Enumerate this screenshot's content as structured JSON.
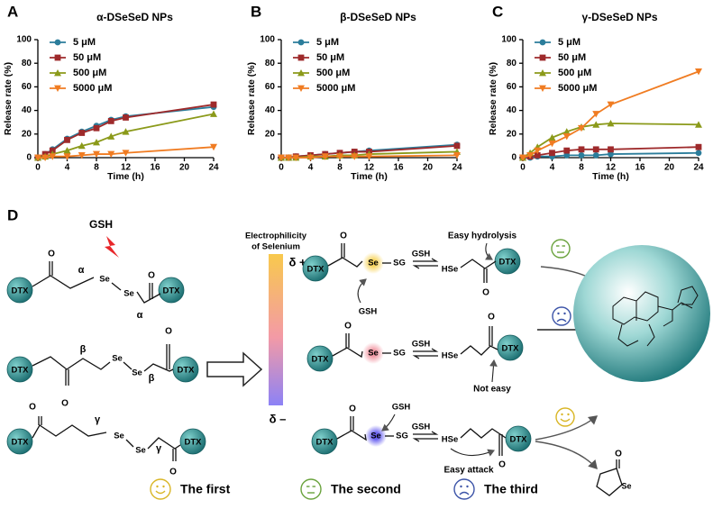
{
  "chart_data": [
    {
      "type": "line",
      "label": "A",
      "title": "α-DSeSeD NPs",
      "x_label": "Time (h)",
      "y_label": "Release rate (%)",
      "x": [
        0,
        1,
        2,
        4,
        6,
        8,
        10,
        12,
        24
      ],
      "xlim": [
        0,
        24
      ],
      "xticks": [
        0,
        4,
        8,
        12,
        16,
        20,
        24
      ],
      "ylim": [
        0,
        100
      ],
      "yticks": [
        0,
        20,
        40,
        60,
        80,
        100
      ],
      "series": [
        {
          "name": "5 μM",
          "color": "#2b7d9b",
          "marker": "circle",
          "values": [
            0,
            3,
            7,
            16,
            22,
            27,
            32,
            35,
            43
          ]
        },
        {
          "name": "50 μM",
          "color": "#9e2a2b",
          "marker": "square",
          "values": [
            0,
            3,
            6,
            15,
            21,
            25,
            31,
            34,
            45
          ]
        },
        {
          "name": "500 μM",
          "color": "#8b9a1a",
          "marker": "triangle-up",
          "values": [
            0,
            1,
            3,
            6,
            10,
            13,
            18,
            22,
            37
          ]
        },
        {
          "name": "5000 μM",
          "color": "#f07c22",
          "marker": "triangle-down",
          "values": [
            0,
            0,
            1,
            1,
            2,
            3,
            3,
            4,
            9
          ]
        }
      ]
    },
    {
      "type": "line",
      "label": "B",
      "title": "β-DSeSeD NPs",
      "x_label": "Time (h)",
      "y_label": "Release rate (%)",
      "x": [
        0,
        1,
        2,
        4,
        6,
        8,
        10,
        12,
        24
      ],
      "xlim": [
        0,
        24
      ],
      "xticks": [
        0,
        4,
        8,
        12,
        16,
        20,
        24
      ],
      "ylim": [
        0,
        100
      ],
      "yticks": [
        0,
        20,
        40,
        60,
        80,
        100
      ],
      "series": [
        {
          "name": "5 μM",
          "color": "#2b7d9b",
          "marker": "circle",
          "values": [
            0,
            0,
            1,
            2,
            3,
            4,
            5,
            6,
            11
          ]
        },
        {
          "name": "50 μM",
          "color": "#9e2a2b",
          "marker": "square",
          "values": [
            0,
            0,
            1,
            2,
            3,
            4,
            5,
            5,
            10
          ]
        },
        {
          "name": "500 μM",
          "color": "#8b9a1a",
          "marker": "triangle-up",
          "values": [
            0,
            0,
            0,
            1,
            1,
            2,
            2,
            3,
            5
          ]
        },
        {
          "name": "5000 μM",
          "color": "#f07c22",
          "marker": "triangle-down",
          "values": [
            0,
            0,
            0,
            0,
            1,
            1,
            1,
            1,
            2
          ]
        }
      ]
    },
    {
      "type": "line",
      "label": "C",
      "title": "γ-DSeSeD NPs",
      "x_label": "Time (h)",
      "y_label": "Release rate (%)",
      "x": [
        0,
        1,
        2,
        4,
        6,
        8,
        10,
        12,
        24
      ],
      "xlim": [
        0,
        24
      ],
      "xticks": [
        0,
        4,
        8,
        12,
        16,
        20,
        24
      ],
      "ylim": [
        0,
        100
      ],
      "yticks": [
        0,
        20,
        40,
        60,
        80,
        100
      ],
      "series": [
        {
          "name": "5 μM",
          "color": "#2b7d9b",
          "marker": "circle",
          "values": [
            0,
            0,
            1,
            1,
            2,
            2,
            2,
            3,
            4
          ]
        },
        {
          "name": "50 μM",
          "color": "#9e2a2b",
          "marker": "square",
          "values": [
            0,
            1,
            2,
            4,
            6,
            7,
            7,
            7,
            9
          ]
        },
        {
          "name": "500 μM",
          "color": "#8b9a1a",
          "marker": "triangle-up",
          "values": [
            0,
            4,
            9,
            17,
            22,
            26,
            28,
            29,
            28
          ]
        },
        {
          "name": "5000 μM",
          "color": "#f07c22",
          "marker": "triangle-down",
          "values": [
            0,
            2,
            6,
            12,
            18,
            25,
            37,
            45,
            73
          ]
        }
      ]
    }
  ],
  "diagram": {
    "label": "D",
    "gsh": "GSH",
    "dtx": "DTX",
    "se": "Se",
    "o": "O",
    "sg": "SG",
    "hse": "HSe",
    "greek": [
      "α",
      "β",
      "γ"
    ],
    "electrophilicity": [
      "Electrophilicity",
      "of Selenium"
    ],
    "delta_plus": "δ +",
    "delta_minus": "δ –",
    "notes": [
      "Easy hydrolysis",
      "Not easy",
      "Easy attack"
    ],
    "legend": [
      "The first",
      "The second",
      "The third"
    ]
  }
}
